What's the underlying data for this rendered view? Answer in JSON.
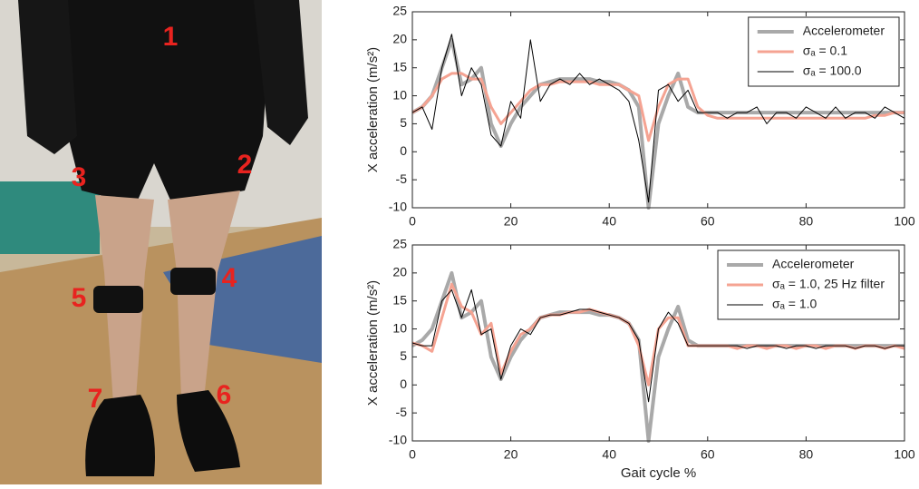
{
  "photo": {
    "labels": [
      "1",
      "2",
      "3",
      "4",
      "5",
      "6",
      "7"
    ]
  },
  "chart_data": [
    {
      "type": "line",
      "ylabel": "X acceleration (m/s²)",
      "legend": "upper right",
      "xlim": [
        0,
        100
      ],
      "xticks": [
        0,
        20,
        40,
        60,
        80,
        100
      ],
      "ylim": [
        -10,
        25
      ],
      "yticks": [
        -10,
        -5,
        0,
        5,
        10,
        15,
        20,
        25
      ],
      "x": [
        0,
        2,
        4,
        6,
        8,
        10,
        12,
        14,
        16,
        18,
        20,
        22,
        24,
        26,
        28,
        30,
        32,
        34,
        36,
        38,
        40,
        42,
        44,
        46,
        48,
        50,
        52,
        54,
        56,
        58,
        60,
        62,
        64,
        66,
        68,
        70,
        72,
        74,
        76,
        78,
        80,
        82,
        84,
        86,
        88,
        90,
        92,
        94,
        96,
        98,
        100
      ],
      "series": [
        {
          "name": "Accelerometer",
          "color": "#a9a9a9",
          "values": [
            7,
            8,
            10,
            15,
            20,
            12,
            13,
            15,
            5,
            1,
            5,
            8,
            10,
            12,
            12.5,
            13,
            13,
            13,
            13,
            12.5,
            12.5,
            12,
            11,
            8,
            -10,
            5,
            10,
            14,
            8,
            7,
            7,
            7,
            7,
            7,
            7,
            7,
            7,
            7,
            7,
            7,
            7,
            7,
            7,
            7,
            7,
            7,
            7,
            7,
            7,
            7,
            7
          ]
        },
        {
          "name": "σₐ = 0.1",
          "color": "#f5a392",
          "values": [
            7,
            8,
            10,
            13,
            14,
            14,
            13,
            13,
            8,
            5,
            7,
            9,
            11,
            12,
            12,
            12.5,
            12.5,
            12.5,
            12.5,
            12,
            12,
            12,
            11,
            10,
            2,
            8,
            12,
            13,
            13,
            8,
            6.5,
            6,
            6,
            6,
            6,
            6,
            6,
            6,
            6,
            6,
            6,
            6,
            6,
            6,
            6,
            6,
            6,
            6.5,
            6.5,
            7,
            7
          ]
        },
        {
          "name": "σₐ = 100.0",
          "color": "#000000",
          "values": [
            7,
            8,
            4,
            15,
            21,
            10,
            15,
            12,
            3,
            1,
            9,
            6,
            20,
            9,
            12,
            13,
            12,
            14,
            12,
            13,
            12,
            11,
            9,
            2,
            -9,
            11,
            12,
            9,
            11,
            7,
            7,
            7,
            6,
            7,
            7,
            8,
            5,
            7,
            7,
            6,
            8,
            7,
            6,
            8,
            6,
            7,
            7,
            6,
            8,
            7,
            6
          ]
        }
      ]
    },
    {
      "type": "line",
      "ylabel": "X acceleration (m/s²)",
      "xlabel": "Gait cycle %",
      "legend": "upper right",
      "xlim": [
        0,
        100
      ],
      "xticks": [
        0,
        20,
        40,
        60,
        80,
        100
      ],
      "ylim": [
        -10,
        25
      ],
      "yticks": [
        -10,
        -5,
        0,
        5,
        10,
        15,
        20,
        25
      ],
      "x": [
        0,
        2,
        4,
        6,
        8,
        10,
        12,
        14,
        16,
        18,
        20,
        22,
        24,
        26,
        28,
        30,
        32,
        34,
        36,
        38,
        40,
        42,
        44,
        46,
        48,
        50,
        52,
        54,
        56,
        58,
        60,
        62,
        64,
        66,
        68,
        70,
        72,
        74,
        76,
        78,
        80,
        82,
        84,
        86,
        88,
        90,
        92,
        94,
        96,
        98,
        100
      ],
      "series": [
        {
          "name": "Accelerometer",
          "color": "#a9a9a9",
          "values": [
            7,
            8,
            10,
            15,
            20,
            12,
            13,
            15,
            5,
            1,
            5,
            8,
            10,
            12,
            12.5,
            13,
            13,
            13,
            13,
            12.5,
            12.5,
            12,
            11,
            8,
            -10,
            5,
            10,
            14,
            8,
            7,
            7,
            7,
            7,
            7,
            7,
            7,
            7,
            7,
            7,
            7,
            7,
            7,
            7,
            7,
            7,
            7,
            7,
            7,
            7,
            7,
            7
          ]
        },
        {
          "name": "σₐ = 1.0, 25 Hz filter",
          "color": "#f5a392",
          "values": [
            7.5,
            7,
            6,
            12,
            18,
            14,
            13,
            9,
            11,
            2,
            6,
            9,
            10,
            12,
            12.5,
            12.5,
            13,
            13,
            13.5,
            13,
            12.5,
            12,
            11,
            7,
            0,
            10,
            12,
            12,
            7,
            7,
            7,
            7,
            7,
            6.5,
            7,
            7,
            6.5,
            7,
            7,
            6.5,
            7,
            7,
            6.5,
            7,
            7,
            6.5,
            7,
            7,
            6.5,
            7,
            6.5
          ]
        },
        {
          "name": "σₐ = 1.0",
          "color": "#000000",
          "values": [
            7.5,
            7,
            7,
            15,
            17,
            12,
            17,
            9,
            10,
            1,
            7,
            10,
            9,
            12,
            12.5,
            12.5,
            13,
            13.5,
            13.5,
            13,
            12.5,
            12,
            11,
            8,
            -3,
            10,
            13,
            11,
            7,
            7,
            7,
            7,
            7,
            7,
            6.5,
            7,
            7,
            7,
            6.5,
            7,
            7,
            6.5,
            7,
            7,
            7,
            6.5,
            7,
            7,
            6.5,
            7,
            7
          ]
        }
      ]
    }
  ]
}
